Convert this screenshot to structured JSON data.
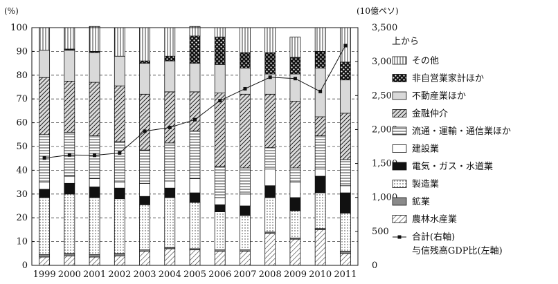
{
  "chart_data": {
    "type": "bar",
    "subtype": "stacked-percent-with-line",
    "left_axis_unit": "(%)",
    "right_axis_unit": "(10億ペソ)",
    "ylim_left": [
      0,
      100
    ],
    "ylim_right": [
      0,
      3500
    ],
    "left_ticks": [
      "0",
      "10",
      "20",
      "30",
      "40",
      "50",
      "60",
      "70",
      "80",
      "90",
      "100"
    ],
    "right_ticks": [
      "0",
      "500",
      "1,000",
      "1,500",
      "2,000",
      "2,500",
      "3,000",
      "3,500"
    ],
    "grid": "horizontal dashed",
    "categories": [
      "1999",
      "2000",
      "2001",
      "2002",
      "2003",
      "2004",
      "2005",
      "2006",
      "2007",
      "2008",
      "2009",
      "2010",
      "2011"
    ],
    "legend_title": "上から",
    "legend_order": [
      "その他",
      "非自営業家計ほか",
      "不動産業ほか",
      "金融仲介",
      "流通・運輸・通信業ほか",
      "建設業",
      "電気・ガス・水道業",
      "製造業",
      "鉱業",
      "農林水産業"
    ],
    "series": [
      {
        "name": "農林水産業",
        "pattern": "diag",
        "values": [
          3.5,
          4,
          3.5,
          4,
          6,
          7,
          6.5,
          6,
          6,
          13.5,
          11,
          15,
          5
        ]
      },
      {
        "name": "鉱業",
        "pattern": "gray",
        "values": [
          1,
          1,
          1,
          1,
          0.5,
          0.5,
          0.5,
          0.5,
          0.5,
          0.5,
          0.5,
          0.5,
          1
        ]
      },
      {
        "name": "製造業",
        "pattern": "dots",
        "values": [
          24,
          25,
          24,
          23,
          19,
          21,
          19.5,
          16,
          14.5,
          14.5,
          11.5,
          15,
          16
        ]
      },
      {
        "name": "電気・ガス・水道業",
        "pattern": "black",
        "values": [
          3.5,
          4.5,
          4.5,
          4.5,
          3.5,
          4,
          4,
          3,
          4,
          5,
          5.5,
          7,
          8.5
        ]
      },
      {
        "name": "建設業",
        "pattern": "white",
        "values": [
          3,
          3,
          3.5,
          2.5,
          5.5,
          3,
          6,
          3,
          5,
          7,
          6.5,
          3,
          3
        ]
      },
      {
        "name": "流通・運輸・通信業ほか",
        "pattern": "hlines",
        "values": [
          20,
          18.5,
          18,
          17,
          14,
          16,
          20,
          13,
          11,
          9,
          6,
          14,
          11
        ]
      },
      {
        "name": "金融仲介",
        "pattern": "xdiag",
        "values": [
          24,
          21.5,
          22.5,
          23.5,
          23.5,
          21.5,
          16.5,
          31,
          31,
          22.5,
          28,
          8,
          19.5
        ]
      },
      {
        "name": "不動産業ほか",
        "pattern": "light",
        "values": [
          11.5,
          13,
          12.5,
          12.5,
          13,
          13,
          12,
          12,
          11,
          8.5,
          11.5,
          20.5,
          14
        ]
      },
      {
        "name": "非自営業家計ほか",
        "pattern": "checker",
        "values": [
          0,
          0.5,
          0.5,
          0,
          1,
          2,
          11.5,
          11.5,
          6.5,
          9,
          7,
          7,
          7.5
        ]
      },
      {
        "name": "その他",
        "pattern": "vlines",
        "values": [
          9.5,
          9,
          10.5,
          12,
          14,
          12,
          4,
          4,
          10.5,
          10.5,
          8.5,
          10,
          14.5
        ]
      }
    ],
    "line": {
      "name": "合計(右軸)",
      "values": [
        1580,
        1625,
        1620,
        1655,
        1975,
        2030,
        2145,
        2425,
        2600,
        2770,
        2750,
        2560,
        3235
      ]
    },
    "ratio_label": "与信残高GDP比(左軸)"
  }
}
